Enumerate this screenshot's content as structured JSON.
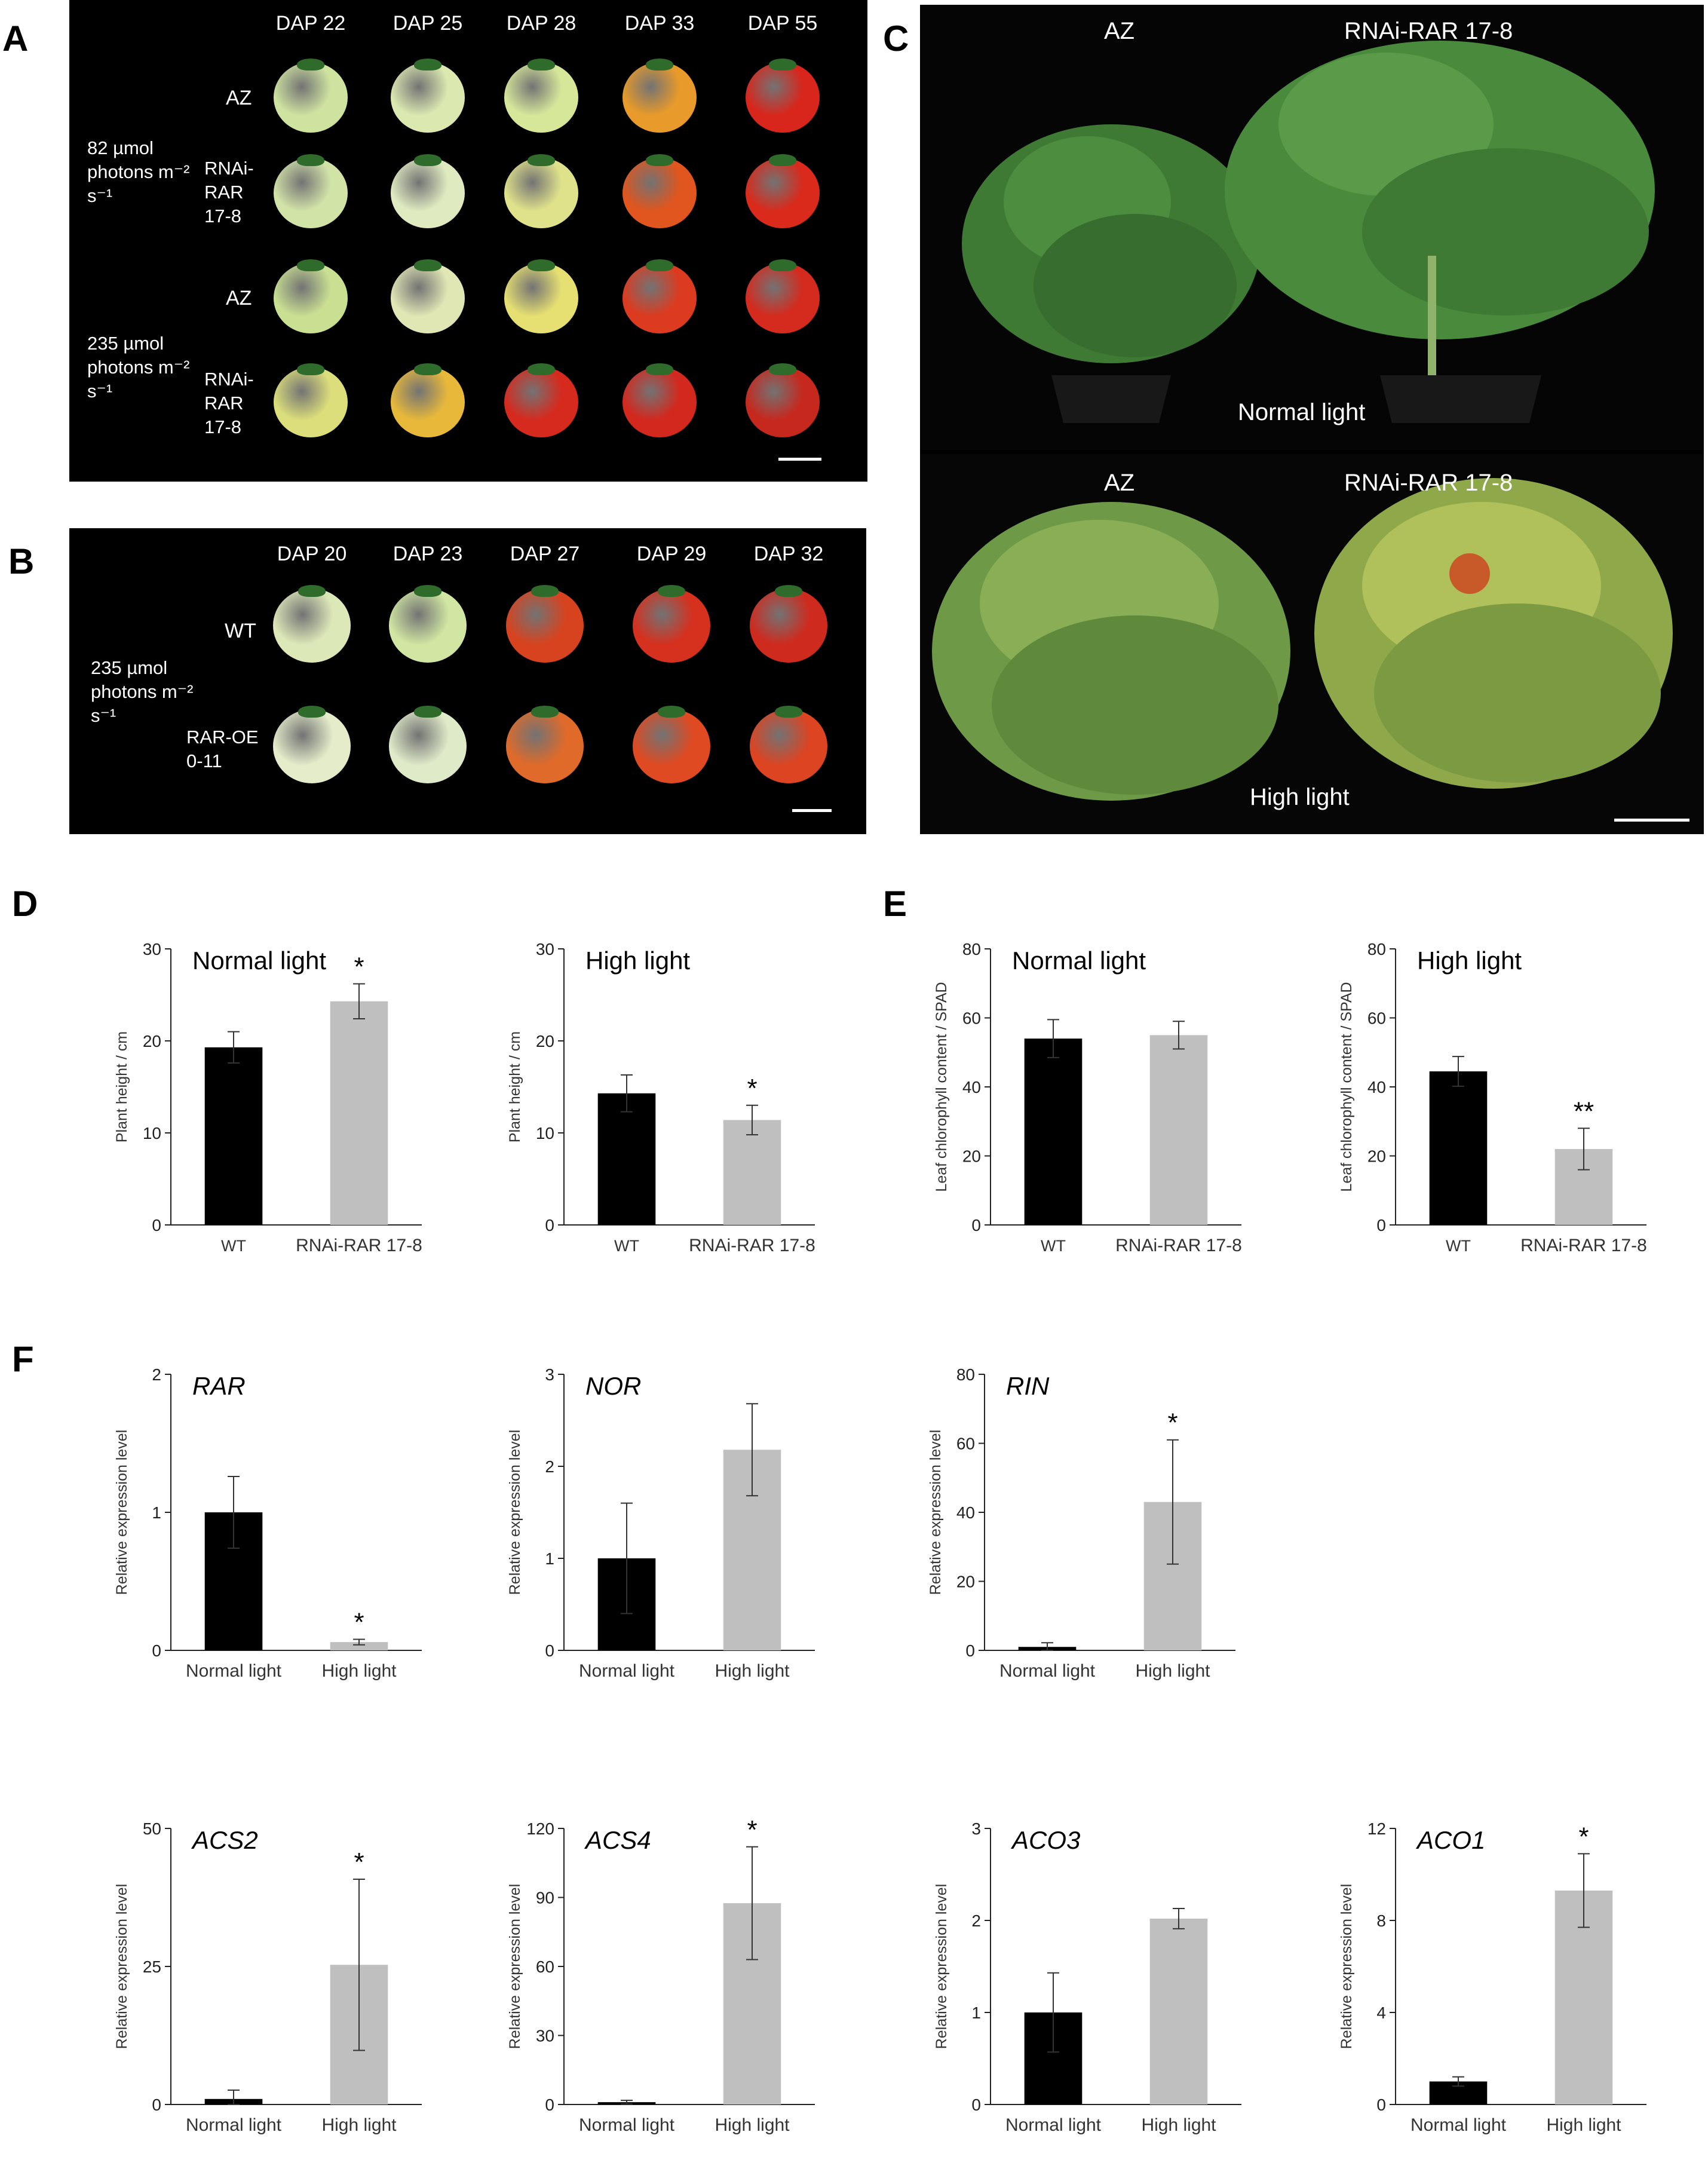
{
  "figure": {
    "panels": {
      "A": "A",
      "B": "B",
      "C": "C",
      "D": "D",
      "E": "E",
      "F": "F"
    },
    "panel_a": {
      "dap_labels": [
        "DAP 22",
        "DAP 25",
        "DAP 28",
        "DAP 33",
        "DAP 55"
      ],
      "condition_1": "82 µmol photons m⁻² s⁻¹",
      "condition_2": "235 µmol photons m⁻² s⁻¹",
      "row_labels": [
        "AZ",
        "RNAi-RAR 17-8",
        "AZ",
        "RNAi-RAR 17-8"
      ],
      "fruit_colors": [
        [
          "#cfe3a0",
          "#dbe8b0",
          "#d6e79a",
          "#e89a2a",
          "#d8261c"
        ],
        [
          "#d2e3a8",
          "#dfeac0",
          "#dfe28a",
          "#e0561e",
          "#d92a1c"
        ],
        [
          "#c9df92",
          "#e0e6b4",
          "#e6df72",
          "#dc3b20",
          "#d52a1e"
        ],
        [
          "#dbde7a",
          "#e7b83a",
          "#d62a1e",
          "#d3281e",
          "#c6281e"
        ]
      ]
    },
    "panel_b": {
      "dap_labels": [
        "DAP 20",
        "DAP 23",
        "DAP 27",
        "DAP 29",
        "DAP 32"
      ],
      "condition": "235 µmol photons m⁻² s⁻¹",
      "row_labels": [
        "WT",
        "RAR-OE 0-11"
      ],
      "fruit_colors": [
        [
          "#dde8b8",
          "#d0e6a2",
          "#d8431f",
          "#d6301e",
          "#cf2a1e"
        ],
        [
          "#e4ecca",
          "#dfeac8",
          "#df6a2a",
          "#df4a22",
          "#dd4422"
        ]
      ]
    },
    "panel_c": {
      "top_labels": [
        "AZ",
        "RNAi-RAR 17-8"
      ],
      "top_caption": "Normal light",
      "bottom_labels": [
        "AZ",
        "RNAi-RAR 17-8"
      ],
      "bottom_caption": "High light"
    }
  },
  "chart_data": [
    {
      "id": "D-normal",
      "type": "bar",
      "title": "Normal light",
      "ylabel": "Plant height / cm",
      "categories": [
        "WT",
        "RNAi-RAR 17-8"
      ],
      "values": [
        19.3,
        24.3
      ],
      "errors": [
        1.7,
        1.9
      ],
      "significance": [
        "",
        "*"
      ],
      "ylim": [
        0,
        30
      ],
      "yticks": [
        0,
        10,
        20,
        30
      ],
      "colors": [
        "#000000",
        "#bfbfbf"
      ]
    },
    {
      "id": "D-high",
      "type": "bar",
      "title": "High light",
      "ylabel": "Plant height / cm",
      "categories": [
        "WT",
        "RNAi-RAR 17-8"
      ],
      "values": [
        14.3,
        11.4
      ],
      "errors": [
        2.0,
        1.6
      ],
      "significance": [
        "",
        "*"
      ],
      "ylim": [
        0,
        30
      ],
      "yticks": [
        0,
        10,
        20,
        30
      ],
      "colors": [
        "#000000",
        "#bfbfbf"
      ]
    },
    {
      "id": "E-normal",
      "type": "bar",
      "title": "Normal light",
      "ylabel": "Leaf chlorophyll content / SPAD",
      "categories": [
        "WT",
        "RNAi-RAR 17-8"
      ],
      "values": [
        54,
        55
      ],
      "errors": [
        5.5,
        4
      ],
      "significance": [
        "",
        ""
      ],
      "ylim": [
        0,
        80
      ],
      "yticks": [
        0,
        20,
        40,
        60,
        80
      ],
      "colors": [
        "#000000",
        "#bfbfbf"
      ]
    },
    {
      "id": "E-high",
      "type": "bar",
      "title": "High light",
      "ylabel": "Leaf chlorophyll content / SPAD",
      "categories": [
        "WT",
        "RNAi-RAR 17-8"
      ],
      "values": [
        44.5,
        22
      ],
      "errors": [
        4.3,
        6
      ],
      "significance": [
        "",
        "**"
      ],
      "ylim": [
        0,
        80
      ],
      "yticks": [
        0,
        20,
        40,
        60,
        80
      ],
      "colors": [
        "#000000",
        "#bfbfbf"
      ]
    },
    {
      "id": "F-RAR",
      "type": "bar",
      "title": "RAR",
      "ylabel": "Relative expression level",
      "categories": [
        "Normal light",
        "High light"
      ],
      "values": [
        1.0,
        0.06
      ],
      "errors": [
        0.26,
        0.02
      ],
      "significance": [
        "",
        "*"
      ],
      "ylim": [
        0,
        2
      ],
      "yticks": [
        0,
        1,
        2
      ],
      "colors": [
        "#000000",
        "#bfbfbf"
      ]
    },
    {
      "id": "F-NOR",
      "type": "bar",
      "title": "NOR",
      "ylabel": "Relative expression level",
      "categories": [
        "Normal light",
        "High light"
      ],
      "values": [
        1.0,
        2.18
      ],
      "errors": [
        0.6,
        0.5
      ],
      "significance": [
        "",
        ""
      ],
      "ylim": [
        0,
        3
      ],
      "yticks": [
        0,
        1,
        2,
        3
      ],
      "colors": [
        "#000000",
        "#bfbfbf"
      ]
    },
    {
      "id": "F-RIN",
      "type": "bar",
      "title": "RIN",
      "ylabel": "Relative expression level",
      "categories": [
        "Normal light",
        "High light"
      ],
      "values": [
        1.0,
        43
      ],
      "errors": [
        1.2,
        18
      ],
      "significance": [
        "",
        "*"
      ],
      "ylim": [
        0,
        80
      ],
      "yticks": [
        0,
        20,
        40,
        60,
        80
      ],
      "colors": [
        "#000000",
        "#bfbfbf"
      ]
    },
    {
      "id": "F-ACS2",
      "type": "bar",
      "title": "ACS2",
      "ylabel": "Relative expression level",
      "categories": [
        "Normal light",
        "High light"
      ],
      "values": [
        1.0,
        25.3
      ],
      "errors": [
        1.6,
        15.5
      ],
      "significance": [
        "",
        "*"
      ],
      "ylim": [
        0,
        50
      ],
      "yticks": [
        0,
        25,
        50
      ],
      "colors": [
        "#000000",
        "#bfbfbf"
      ]
    },
    {
      "id": "F-ACS4",
      "type": "bar",
      "title": "ACS4",
      "ylabel": "Relative expression level",
      "categories": [
        "Normal light",
        "High light"
      ],
      "values": [
        1.0,
        87.5
      ],
      "errors": [
        0.8,
        24.5
      ],
      "significance": [
        "",
        "*"
      ],
      "ylim": [
        0,
        120
      ],
      "yticks": [
        0,
        30,
        60,
        90,
        120
      ],
      "colors": [
        "#000000",
        "#bfbfbf"
      ]
    },
    {
      "id": "F-ACO3",
      "type": "bar",
      "title": "ACO3",
      "ylabel": "Relative expression level",
      "categories": [
        "Normal light",
        "High light"
      ],
      "values": [
        1.0,
        2.02
      ],
      "errors": [
        0.43,
        0.11
      ],
      "significance": [
        "",
        ""
      ],
      "ylim": [
        0,
        3
      ],
      "yticks": [
        0,
        1,
        2,
        3
      ],
      "colors": [
        "#000000",
        "#bfbfbf"
      ]
    },
    {
      "id": "F-ACO1",
      "type": "bar",
      "title": "ACO1",
      "ylabel": "Relative expression level",
      "categories": [
        "Normal light",
        "High light"
      ],
      "values": [
        1.0,
        9.3
      ],
      "errors": [
        0.2,
        1.6
      ],
      "significance": [
        "",
        "*"
      ],
      "ylim": [
        0,
        12
      ],
      "yticks": [
        0,
        4,
        8,
        12
      ],
      "colors": [
        "#000000",
        "#bfbfbf"
      ]
    }
  ]
}
